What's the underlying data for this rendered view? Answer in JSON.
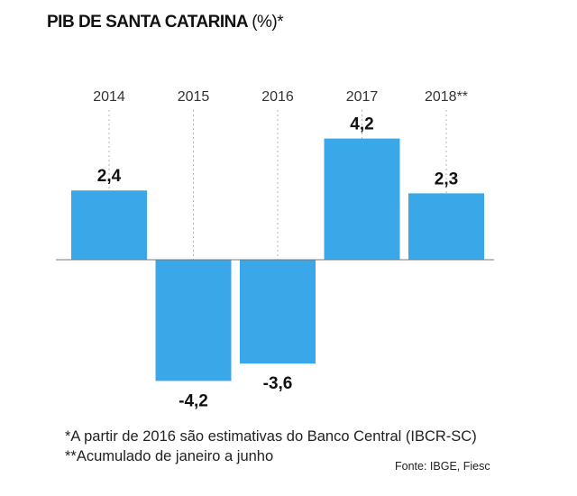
{
  "title": "PIB DE SANTA CATARINA",
  "title_suffix": "(%)*",
  "chart_data": {
    "type": "bar",
    "categories": [
      "2014",
      "2015",
      "2016",
      "2017",
      "2018**"
    ],
    "values": [
      2.4,
      -4.2,
      -3.6,
      4.2,
      2.3
    ],
    "value_labels": [
      "2,4",
      "-4,2",
      "-3,6",
      "4,2",
      "2,3"
    ],
    "bar_color": "#3aa8e8",
    "grid": false,
    "legend": "none"
  },
  "notes": {
    "note1": "*A partir de 2016 são estimativas do Banco Central (IBCR-SC)",
    "note2": "**Acumulado de janeiro a junho",
    "source": "Fonte: IBGE, Fiesc"
  }
}
